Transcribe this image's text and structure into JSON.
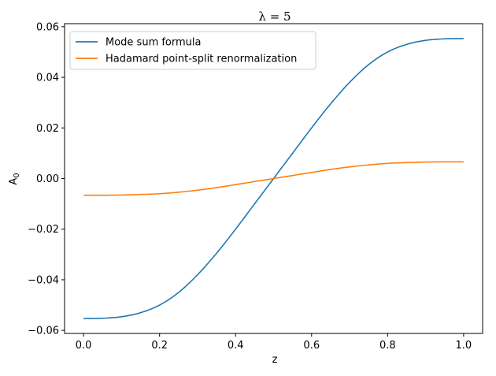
{
  "chart_data": {
    "type": "line",
    "title": "λ = 5",
    "xlabel": "z",
    "ylabel": "A0",
    "xlim": [
      -0.05,
      1.05
    ],
    "ylim": [
      -0.0612,
      0.0612
    ],
    "x_ticks": [
      0.0,
      0.2,
      0.4,
      0.6,
      0.8,
      1.0
    ],
    "x_tick_labels": [
      "0.0",
      "0.2",
      "0.4",
      "0.6",
      "0.8",
      "1.0"
    ],
    "y_ticks": [
      -0.06,
      -0.04,
      -0.02,
      0.0,
      0.02,
      0.04,
      0.06
    ],
    "y_tick_labels": [
      "−0.06",
      "−0.04",
      "−0.02",
      "0.00",
      "0.02",
      "0.04",
      "0.06"
    ],
    "grid": false,
    "legend_position": "top-left",
    "x": [
      0.0,
      0.05,
      0.1,
      0.15,
      0.2,
      0.25,
      0.3,
      0.35,
      0.4,
      0.45,
      0.5,
      0.55,
      0.6,
      0.65,
      0.7,
      0.75,
      0.8,
      0.85,
      0.9,
      0.95,
      1.0
    ],
    "series": [
      {
        "name": "Mode sum formula",
        "color": "#1f77b4",
        "values": [
          -0.0553,
          -0.0552,
          -0.0546,
          -0.053,
          -0.05,
          -0.045,
          -0.038,
          -0.0295,
          -0.02,
          -0.01,
          0.0,
          0.01,
          0.02,
          0.0295,
          0.038,
          0.045,
          0.05,
          0.053,
          0.0546,
          0.0552,
          0.0553
        ]
      },
      {
        "name": "Hadamard point-split renormalization",
        "color": "#ff7f0e",
        "values": [
          -0.0066,
          -0.0066,
          -0.0065,
          -0.0063,
          -0.006,
          -0.0054,
          -0.0046,
          -0.0036,
          -0.0024,
          -0.0012,
          0.0,
          0.0012,
          0.0024,
          0.0036,
          0.0046,
          0.0054,
          0.006,
          0.0063,
          0.0065,
          0.0066,
          0.0066
        ]
      }
    ]
  }
}
